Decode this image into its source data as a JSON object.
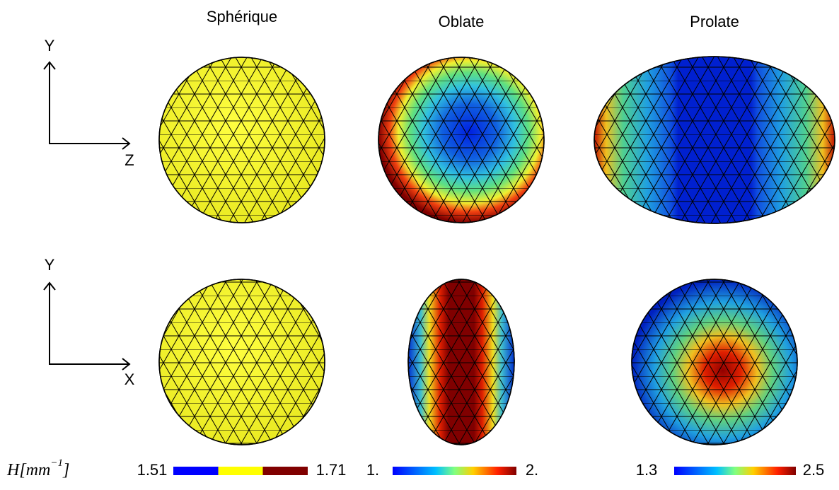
{
  "columns": [
    {
      "title": "Sphérique"
    },
    {
      "title": "Oblate"
    },
    {
      "title": "Prolate"
    }
  ],
  "axes": [
    {
      "vertical": "Y",
      "horizontal": "Z"
    },
    {
      "vertical": "Y",
      "horizontal": "X"
    }
  ],
  "colorbar_label": {
    "main": "H[mm",
    "exponent": "−1",
    "end": "]"
  },
  "colorbars": [
    {
      "min": "1.51",
      "max": "1.71"
    },
    {
      "min": "1.",
      "max": "2."
    },
    {
      "min": "1.3",
      "max": "2.5"
    }
  ]
}
